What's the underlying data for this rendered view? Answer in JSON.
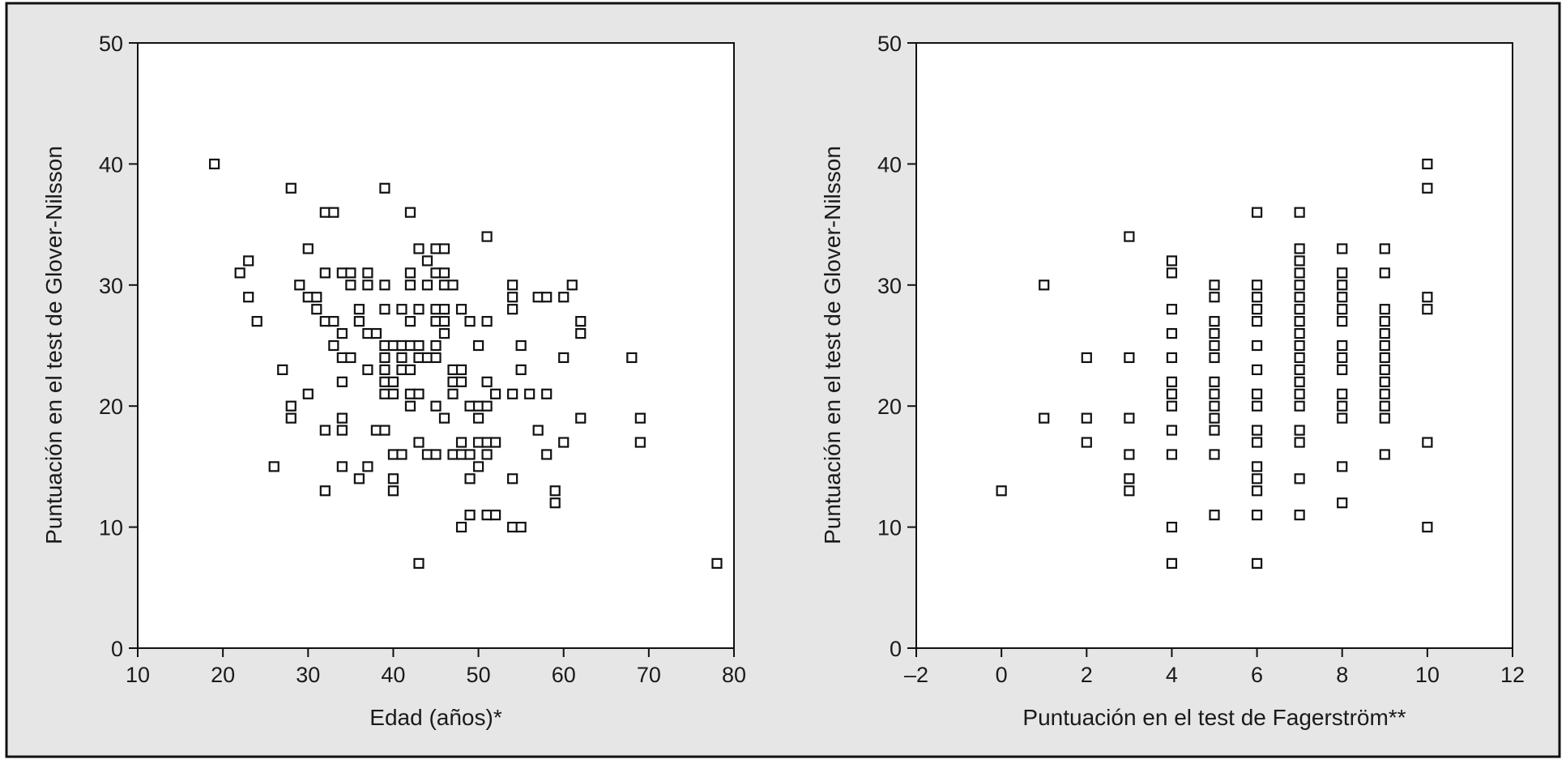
{
  "colors": {
    "background": "#e6e6e6",
    "plot_area": "#ffffff",
    "ink": "#111111"
  },
  "chart_data": [
    {
      "type": "scatter",
      "title": "",
      "xlabel": "Edad (años)*",
      "ylabel": "Puntuación en el test de Glover-Nilsson",
      "xlim": [
        10,
        80
      ],
      "ylim": [
        0,
        50
      ],
      "xticks": [
        10,
        20,
        30,
        40,
        50,
        60,
        70,
        80
      ],
      "xtick_labels": [
        "10",
        "20",
        "30",
        "40",
        "50",
        "60",
        "70",
        "80"
      ],
      "yticks": [
        0,
        10,
        20,
        30,
        40,
        50
      ],
      "ytick_labels": [
        "0",
        "10",
        "20",
        "30",
        "40",
        "50"
      ],
      "grid": false,
      "marker": "open-square",
      "points": [
        [
          19,
          40
        ],
        [
          22,
          31
        ],
        [
          23,
          32
        ],
        [
          23,
          29
        ],
        [
          24,
          27
        ],
        [
          26,
          15
        ],
        [
          27,
          23
        ],
        [
          28,
          38
        ],
        [
          28,
          20
        ],
        [
          28,
          19
        ],
        [
          29,
          30
        ],
        [
          30,
          33
        ],
        [
          30,
          29
        ],
        [
          30,
          21
        ],
        [
          31,
          29
        ],
        [
          31,
          28
        ],
        [
          32,
          36
        ],
        [
          32,
          31
        ],
        [
          32,
          27
        ],
        [
          32,
          18
        ],
        [
          32,
          13
        ],
        [
          33,
          36
        ],
        [
          33,
          27
        ],
        [
          33,
          25
        ],
        [
          34,
          31
        ],
        [
          34,
          26
        ],
        [
          34,
          24
        ],
        [
          34,
          22
        ],
        [
          34,
          19
        ],
        [
          34,
          18
        ],
        [
          34,
          15
        ],
        [
          35,
          31
        ],
        [
          35,
          30
        ],
        [
          35,
          24
        ],
        [
          36,
          28
        ],
        [
          36,
          27
        ],
        [
          36,
          14
        ],
        [
          37,
          31
        ],
        [
          37,
          30
        ],
        [
          37,
          26
        ],
        [
          37,
          23
        ],
        [
          37,
          15
        ],
        [
          38,
          26
        ],
        [
          38,
          18
        ],
        [
          39,
          38
        ],
        [
          39,
          30
        ],
        [
          39,
          28
        ],
        [
          39,
          25
        ],
        [
          39,
          24
        ],
        [
          39,
          23
        ],
        [
          39,
          22
        ],
        [
          39,
          21
        ],
        [
          39,
          18
        ],
        [
          40,
          25
        ],
        [
          40,
          22
        ],
        [
          40,
          21
        ],
        [
          40,
          16
        ],
        [
          40,
          14
        ],
        [
          40,
          13
        ],
        [
          41,
          28
        ],
        [
          41,
          25
        ],
        [
          41,
          24
        ],
        [
          41,
          23
        ],
        [
          41,
          16
        ],
        [
          42,
          36
        ],
        [
          42,
          31
        ],
        [
          42,
          30
        ],
        [
          42,
          27
        ],
        [
          42,
          25
        ],
        [
          42,
          23
        ],
        [
          42,
          21
        ],
        [
          42,
          20
        ],
        [
          43,
          33
        ],
        [
          43,
          28
        ],
        [
          43,
          25
        ],
        [
          43,
          24
        ],
        [
          43,
          21
        ],
        [
          43,
          17
        ],
        [
          43,
          7
        ],
        [
          44,
          32
        ],
        [
          44,
          30
        ],
        [
          44,
          24
        ],
        [
          44,
          16
        ],
        [
          45,
          33
        ],
        [
          45,
          31
        ],
        [
          45,
          28
        ],
        [
          45,
          27
        ],
        [
          45,
          25
        ],
        [
          45,
          24
        ],
        [
          45,
          20
        ],
        [
          45,
          16
        ],
        [
          46,
          33
        ],
        [
          46,
          31
        ],
        [
          46,
          30
        ],
        [
          46,
          28
        ],
        [
          46,
          27
        ],
        [
          46,
          26
        ],
        [
          46,
          19
        ],
        [
          47,
          30
        ],
        [
          47,
          23
        ],
        [
          47,
          22
        ],
        [
          47,
          21
        ],
        [
          47,
          16
        ],
        [
          48,
          28
        ],
        [
          48,
          23
        ],
        [
          48,
          22
        ],
        [
          48,
          17
        ],
        [
          48,
          16
        ],
        [
          48,
          10
        ],
        [
          49,
          27
        ],
        [
          49,
          20
        ],
        [
          49,
          16
        ],
        [
          49,
          14
        ],
        [
          49,
          11
        ],
        [
          50,
          25
        ],
        [
          50,
          20
        ],
        [
          50,
          19
        ],
        [
          50,
          17
        ],
        [
          50,
          15
        ],
        [
          51,
          34
        ],
        [
          51,
          27
        ],
        [
          51,
          22
        ],
        [
          51,
          20
        ],
        [
          51,
          17
        ],
        [
          51,
          16
        ],
        [
          51,
          11
        ],
        [
          52,
          21
        ],
        [
          52,
          17
        ],
        [
          52,
          11
        ],
        [
          54,
          30
        ],
        [
          54,
          29
        ],
        [
          54,
          28
        ],
        [
          54,
          21
        ],
        [
          54,
          14
        ],
        [
          54,
          10
        ],
        [
          55,
          25
        ],
        [
          55,
          23
        ],
        [
          55,
          10
        ],
        [
          56,
          21
        ],
        [
          57,
          29
        ],
        [
          57,
          18
        ],
        [
          58,
          29
        ],
        [
          58,
          21
        ],
        [
          58,
          16
        ],
        [
          59,
          13
        ],
        [
          59,
          12
        ],
        [
          60,
          29
        ],
        [
          60,
          24
        ],
        [
          60,
          17
        ],
        [
          61,
          30
        ],
        [
          62,
          27
        ],
        [
          62,
          26
        ],
        [
          62,
          19
        ],
        [
          68,
          24
        ],
        [
          69,
          19
        ],
        [
          69,
          17
        ],
        [
          78,
          7
        ]
      ]
    },
    {
      "type": "scatter",
      "title": "",
      "xlabel": "Puntuación en el test de Fagerström**",
      "ylabel": "Puntuación en el test de Glover-Nilsson",
      "xlim": [
        -2,
        12
      ],
      "ylim": [
        0,
        50
      ],
      "xticks": [
        -2,
        0,
        2,
        4,
        6,
        8,
        10,
        12
      ],
      "xtick_labels": [
        "–2",
        "0",
        "2",
        "4",
        "6",
        "8",
        "10",
        "12"
      ],
      "yticks": [
        0,
        10,
        20,
        30,
        40,
        50
      ],
      "ytick_labels": [
        "0",
        "10",
        "20",
        "30",
        "40",
        "50"
      ],
      "grid": false,
      "marker": "open-square",
      "points": [
        [
          0,
          13
        ],
        [
          1,
          30
        ],
        [
          1,
          19
        ],
        [
          2,
          24
        ],
        [
          2,
          19
        ],
        [
          2,
          17
        ],
        [
          3,
          34
        ],
        [
          3,
          24
        ],
        [
          3,
          19
        ],
        [
          3,
          16
        ],
        [
          3,
          14
        ],
        [
          3,
          13
        ],
        [
          4,
          32
        ],
        [
          4,
          31
        ],
        [
          4,
          28
        ],
        [
          4,
          26
        ],
        [
          4,
          24
        ],
        [
          4,
          22
        ],
        [
          4,
          21
        ],
        [
          4,
          20
        ],
        [
          4,
          18
        ],
        [
          4,
          16
        ],
        [
          4,
          10
        ],
        [
          4,
          7
        ],
        [
          5,
          30
        ],
        [
          5,
          29
        ],
        [
          5,
          27
        ],
        [
          5,
          26
        ],
        [
          5,
          25
        ],
        [
          5,
          24
        ],
        [
          5,
          22
        ],
        [
          5,
          21
        ],
        [
          5,
          20
        ],
        [
          5,
          19
        ],
        [
          5,
          18
        ],
        [
          5,
          16
        ],
        [
          5,
          11
        ],
        [
          6,
          36
        ],
        [
          6,
          30
        ],
        [
          6,
          29
        ],
        [
          6,
          28
        ],
        [
          6,
          27
        ],
        [
          6,
          25
        ],
        [
          6,
          23
        ],
        [
          6,
          21
        ],
        [
          6,
          20
        ],
        [
          6,
          18
        ],
        [
          6,
          17
        ],
        [
          6,
          15
        ],
        [
          6,
          14
        ],
        [
          6,
          13
        ],
        [
          6,
          11
        ],
        [
          6,
          7
        ],
        [
          7,
          36
        ],
        [
          7,
          33
        ],
        [
          7,
          32
        ],
        [
          7,
          31
        ],
        [
          7,
          30
        ],
        [
          7,
          29
        ],
        [
          7,
          28
        ],
        [
          7,
          27
        ],
        [
          7,
          26
        ],
        [
          7,
          25
        ],
        [
          7,
          24
        ],
        [
          7,
          23
        ],
        [
          7,
          22
        ],
        [
          7,
          21
        ],
        [
          7,
          20
        ],
        [
          7,
          18
        ],
        [
          7,
          17
        ],
        [
          7,
          14
        ],
        [
          7,
          11
        ],
        [
          8,
          33
        ],
        [
          8,
          31
        ],
        [
          8,
          30
        ],
        [
          8,
          29
        ],
        [
          8,
          28
        ],
        [
          8,
          27
        ],
        [
          8,
          25
        ],
        [
          8,
          24
        ],
        [
          8,
          23
        ],
        [
          8,
          21
        ],
        [
          8,
          20
        ],
        [
          8,
          19
        ],
        [
          8,
          15
        ],
        [
          8,
          12
        ],
        [
          9,
          33
        ],
        [
          9,
          31
        ],
        [
          9,
          28
        ],
        [
          9,
          27
        ],
        [
          9,
          26
        ],
        [
          9,
          25
        ],
        [
          9,
          24
        ],
        [
          9,
          23
        ],
        [
          9,
          22
        ],
        [
          9,
          21
        ],
        [
          9,
          20
        ],
        [
          9,
          19
        ],
        [
          9,
          16
        ],
        [
          10,
          40
        ],
        [
          10,
          38
        ],
        [
          10,
          29
        ],
        [
          10,
          28
        ],
        [
          10,
          17
        ],
        [
          10,
          10
        ]
      ]
    }
  ]
}
